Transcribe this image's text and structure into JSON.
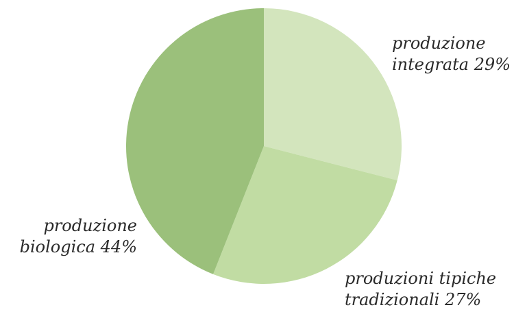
{
  "chart_data": {
    "type": "pie",
    "slices": [
      {
        "name": "produzione integrata",
        "value": 29,
        "color": "#d3e5bd",
        "label_lines": [
          "produzione",
          "integrata 29%"
        ]
      },
      {
        "name": "produzioni tipiche tradizionali",
        "value": 27,
        "color": "#c1dca3",
        "label_lines": [
          "produzioni tipiche",
          "tradizionali 27%"
        ]
      },
      {
        "name": "produzione biologica",
        "value": 44,
        "color": "#9bc07b",
        "label_lines": [
          "produzione",
          "biologica 44%"
        ]
      }
    ],
    "start_angle_deg": 0,
    "direction": "clockwise"
  }
}
